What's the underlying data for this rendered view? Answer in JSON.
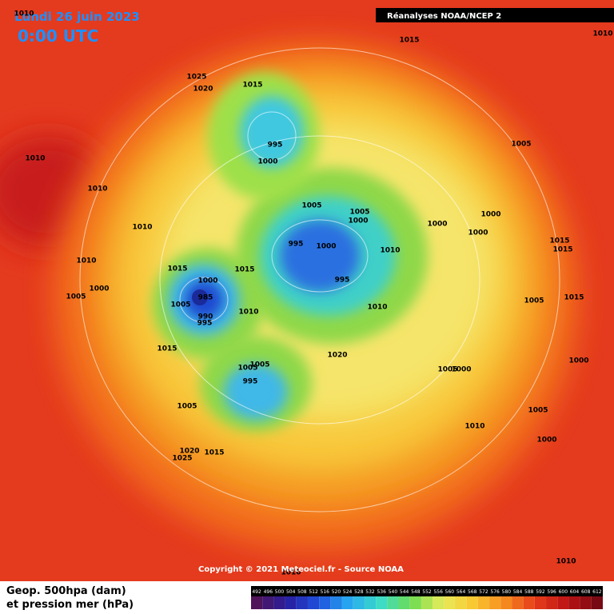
{
  "header": {
    "date": "Lundi 26 juin 2023",
    "time": "0:00 UTC",
    "source": "Réanalyses NOAA/NCEP 2"
  },
  "map": {
    "pressure_labels": [
      1010,
      1015,
      1010,
      1025,
      1020,
      1015,
      995,
      1000,
      1010,
      1010,
      1005,
      1005,
      1005,
      1000,
      1000,
      1000,
      1000,
      1010,
      995,
      1000,
      1010,
      1015,
      1015,
      1010,
      1015,
      1000,
      1015,
      995,
      1000,
      1005,
      985,
      1005,
      1010,
      1010,
      1005,
      1015,
      990,
      995,
      1015,
      1020,
      1000,
      1005,
      1005,
      1005,
      1000,
      995,
      1005,
      1005,
      1010,
      1000,
      1020,
      1025,
      1015,
      1010,
      1010
    ]
  },
  "footer": {
    "copyright": "Copyright © 2021 Meteociel.fr - Source NOAA",
    "legend_line1": "Geop. 500hpa (dam)",
    "legend_line2": "et pression mer (hPa)",
    "scale": [
      492,
      496,
      500,
      504,
      508,
      512,
      516,
      520,
      524,
      528,
      532,
      536,
      540,
      544,
      548,
      552,
      556,
      560,
      564,
      568,
      572,
      576,
      580,
      584,
      588,
      592,
      596,
      600,
      604,
      608,
      612
    ]
  }
}
